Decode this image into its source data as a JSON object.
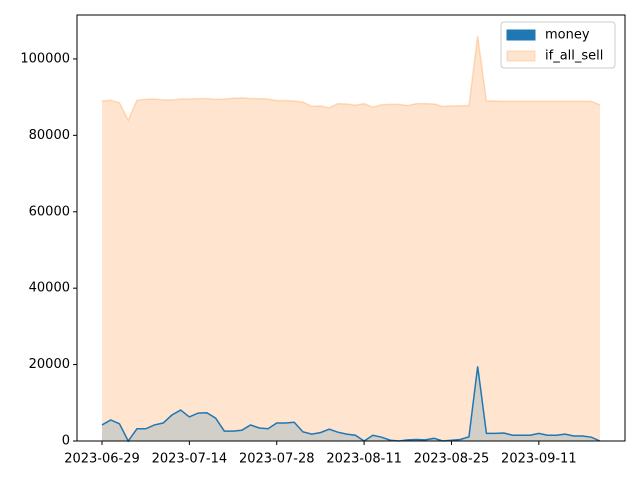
{
  "chart_data": {
    "type": "area",
    "categories": [
      "2023-06-29",
      null,
      null,
      null,
      null,
      null,
      null,
      null,
      null,
      null,
      "2023-07-14",
      null,
      null,
      null,
      null,
      null,
      null,
      null,
      null,
      null,
      "2023-07-28",
      null,
      null,
      null,
      null,
      null,
      null,
      null,
      null,
      null,
      "2023-08-11",
      null,
      null,
      null,
      null,
      null,
      null,
      null,
      null,
      null,
      "2023-08-25",
      null,
      null,
      null,
      null,
      null,
      null,
      null,
      null,
      null,
      "2023-09-11",
      null,
      null,
      null,
      null,
      null,
      null,
      null
    ],
    "series": [
      {
        "name": "money",
        "color": "#1f77b4",
        "values": [
          4200,
          5500,
          4500,
          0,
          3200,
          3200,
          4200,
          4700,
          6800,
          8100,
          6300,
          7300,
          7400,
          6000,
          2600,
          2600,
          2800,
          4200,
          3400,
          3200,
          4700,
          4700,
          4900,
          2400,
          1800,
          2200,
          3100,
          2300,
          1800,
          1500,
          0,
          1500,
          1000,
          200,
          0,
          300,
          400,
          300,
          700,
          0,
          200,
          400,
          1100,
          19500,
          2000,
          2000,
          2100,
          1500,
          1500,
          1500,
          2000,
          1500,
          1500,
          1800,
          1300,
          1300,
          1000,
          0
        ]
      },
      {
        "name": "if_all_sell",
        "color": "#ff7f0e",
        "values": [
          89000,
          89200,
          88500,
          84000,
          89200,
          89400,
          89500,
          89300,
          89300,
          89500,
          89500,
          89600,
          89600,
          89400,
          89500,
          89700,
          89800,
          89600,
          89600,
          89500,
          89100,
          89100,
          89000,
          88700,
          87600,
          87700,
          87200,
          88300,
          88200,
          87900,
          88300,
          87400,
          88000,
          88100,
          88100,
          87800,
          88300,
          88300,
          88200,
          87600,
          87700,
          87700,
          87800,
          106000,
          89000,
          89000,
          88900,
          88900,
          88900,
          88900,
          88900,
          88900,
          88900,
          88900,
          88900,
          88900,
          88900,
          88000
        ]
      }
    ],
    "ylim": [
      0,
      111500
    ],
    "yticks": [
      0,
      20000,
      40000,
      60000,
      80000,
      {
        "value": 100000,
        "label": "100000"
      }
    ],
    "legend": "upper right"
  }
}
